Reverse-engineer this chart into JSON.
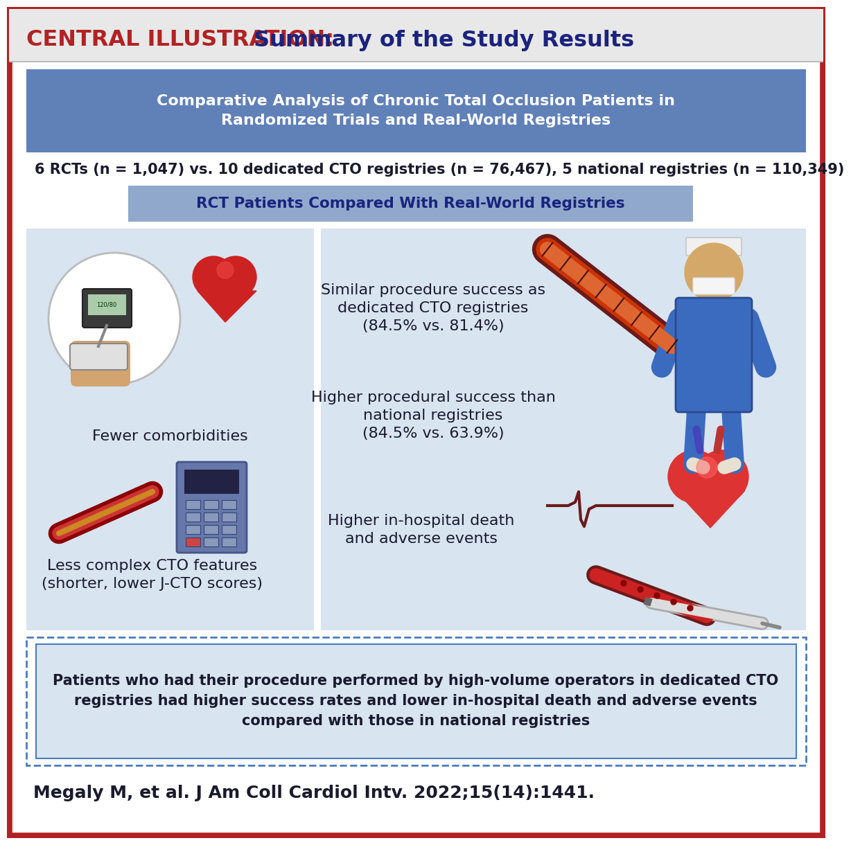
{
  "title_red": "CENTRAL ILLUSTRATION:",
  "title_blue": " Summary of the Study Results",
  "header_bg": "#6080B8",
  "header_text": "Comparative Analysis of Chronic Total Occlusion Patients in\nRandomized Trials and Real-World Registries",
  "subtitle_text": "6 RCTs (n = 1,047) vs. 10 dedicated CTO registries (n = 76,467), 5 national registries (n = 110,349)",
  "rct_banner_bg": "#8FA8CC",
  "rct_banner_text": "RCT Patients Compared With Real-World Registries",
  "panel_bg": "#D8E4F0",
  "left_text1": "Fewer comorbidities",
  "left_text2": "Less complex CTO features\n(shorter, lower J-CTO scores)",
  "right_text1": "Similar procedure success as\ndedicated CTO registries\n(84.5% vs. 81.4%)",
  "right_text2": "Higher procedural success than\nnational registries\n(84.5% vs. 63.9%)",
  "right_text3": "Higher in-hospital death\nand adverse events",
  "outer_dashed_border": "#4A7BBF",
  "bottom_inner_bg": "#D8E4F0",
  "bottom_text": "Patients who had their procedure performed by high-volume operators in dedicated CTO\nregistries had higher success rates and lower in-hospital death and adverse events\ncompared with those in national registries",
  "citation": "Megaly M, et al. J Am Coll Cardiol Intv. 2022;15(14):1441.",
  "outer_border_color": "#B22222",
  "title_area_bg": "#E8E8E8",
  "main_bg": "#FFFFFF",
  "text_dark": "#1A1A2E",
  "header_text_color": "#FFFFFF",
  "title_red_color": "#B22222",
  "title_blue_color": "#1A237E",
  "top_red_line": "#C0392B"
}
